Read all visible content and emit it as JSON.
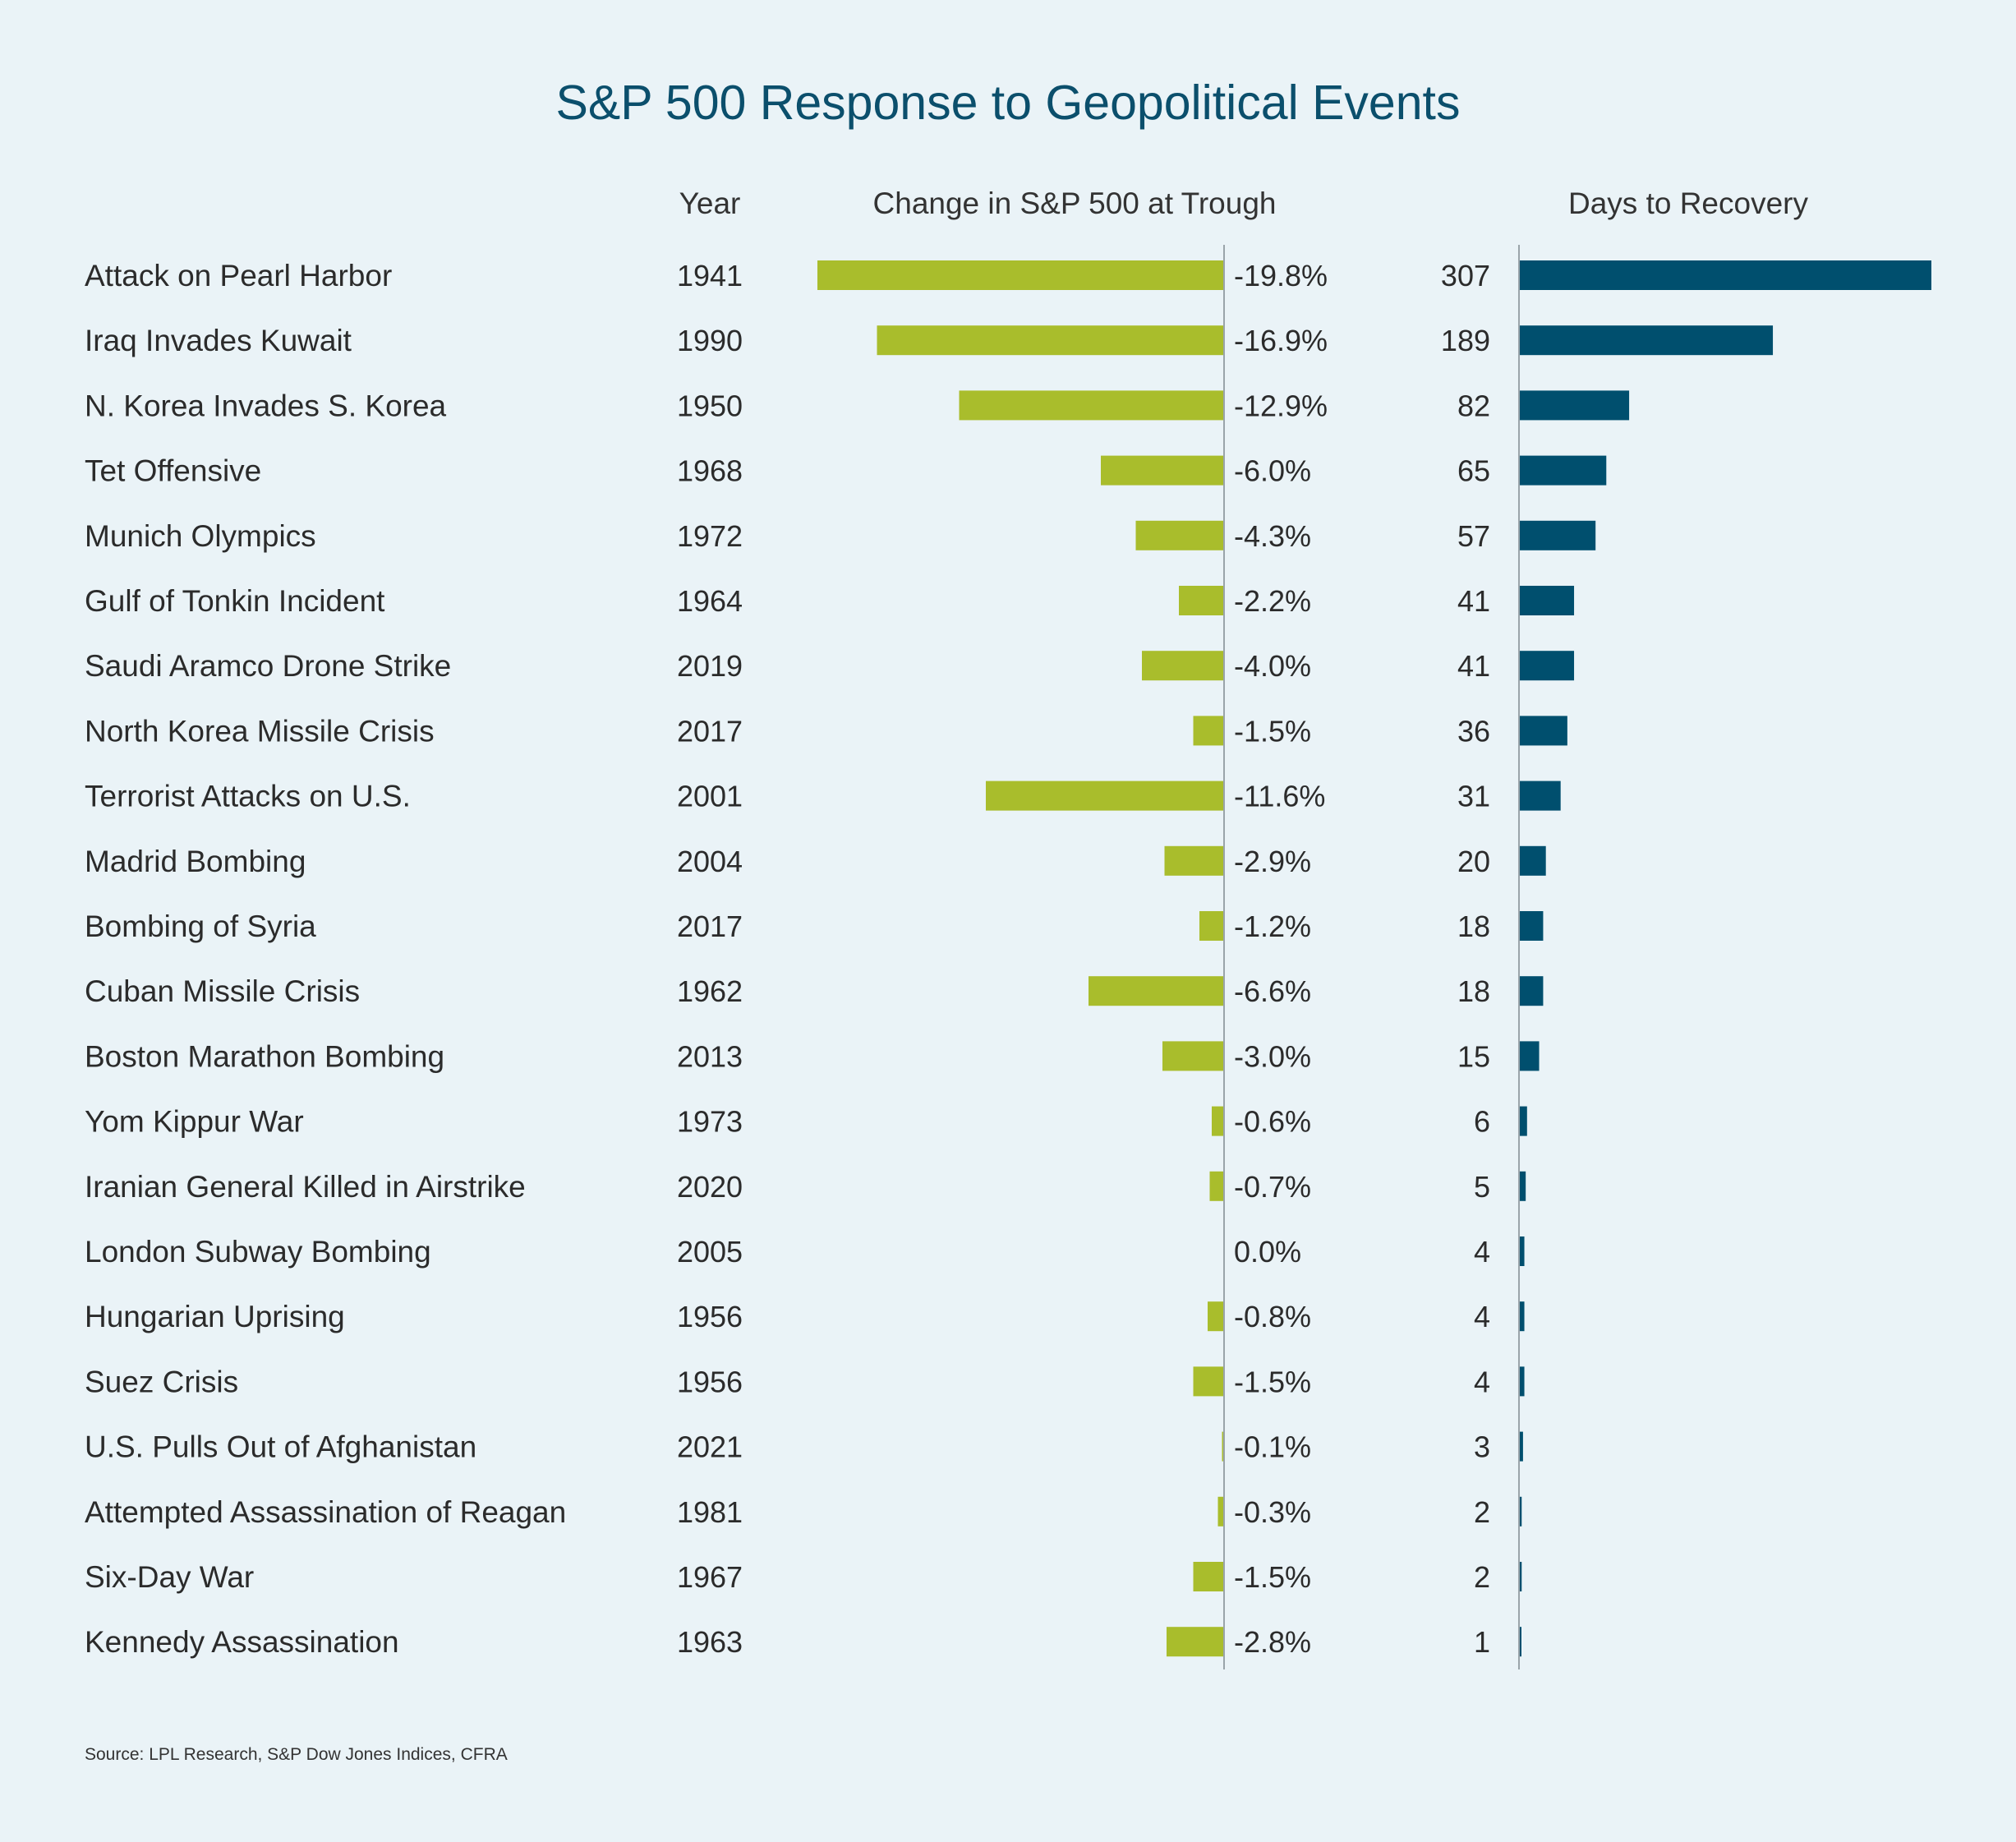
{
  "colors": {
    "background": "#eaf3f7",
    "title": "#0b4f6c",
    "change_bar": "#a9bd2c",
    "days_bar": "#004f6e",
    "axis": "#9aa4aa",
    "text": "#2b2b2b"
  },
  "chart_data": {
    "type": "bar",
    "title": "S&P 500 Response to Geopolitical Events",
    "headers": {
      "year": "Year",
      "change": "Change in S&P 500 at Trough",
      "days": "Days to Recovery"
    },
    "categories": [
      "Attack on Pearl Harbor",
      "Iraq Invades Kuwait",
      "N. Korea Invades S. Korea",
      "Tet Offensive",
      "Munich Olympics",
      "Gulf of Tonkin Incident",
      "Saudi Aramco Drone Strike",
      "North Korea Missile Crisis",
      "Terrorist Attacks on U.S.",
      "Madrid Bombing",
      "Bombing of Syria",
      "Cuban Missile Crisis",
      "Boston Marathon Bombing",
      "Yom Kippur War",
      "Iranian General Killed in Airstrike",
      "London Subway Bombing",
      "Hungarian Uprising",
      "Suez Crisis",
      "U.S. Pulls Out of Afghanistan",
      "Attempted Assassination of Reagan",
      "Six-Day War",
      "Kennedy Assassination"
    ],
    "years": [
      "1941",
      "1990",
      "1950",
      "1968",
      "1972",
      "1964",
      "2019",
      "2017",
      "2001",
      "2004",
      "2017",
      "1962",
      "2013",
      "1973",
      "2020",
      "2005",
      "1956",
      "1956",
      "2021",
      "1981",
      "1967",
      "1963"
    ],
    "series": [
      {
        "values": [
          -19.8,
          -16.9,
          -12.9,
          -6.0,
          -4.3,
          -2.2,
          -4.0,
          -1.5,
          -11.6,
          -2.9,
          -1.2,
          -6.6,
          -3.0,
          -0.6,
          -0.7,
          0.0,
          -0.8,
          -1.5,
          -0.1,
          -0.3,
          -1.5,
          -2.8
        ],
        "labels": [
          "-19.8%",
          "-16.9%",
          "-12.9%",
          "-6.0%",
          "-4.3%",
          "-2.2%",
          "-4.0%",
          "-1.5%",
          "-11.6%",
          "-2.9%",
          "-1.2%",
          "-6.6%",
          "-3.0%",
          "-0.6%",
          "-0.7%",
          "0.0%",
          "-0.8%",
          "-1.5%",
          "-0.1%",
          "-0.3%",
          "-1.5%",
          "-2.8%"
        ]
      },
      {
        "values": [
          307,
          189,
          82,
          65,
          57,
          41,
          41,
          36,
          31,
          20,
          18,
          18,
          15,
          6,
          5,
          4,
          4,
          4,
          3,
          2,
          2,
          1
        ],
        "labels": [
          "307",
          "189",
          "82",
          "65",
          "57",
          "41",
          "41",
          "36",
          "31",
          "20",
          "18",
          "18",
          "15",
          "6",
          "5",
          "4",
          "4",
          "4",
          "3",
          "2",
          "2",
          "1"
        ]
      }
    ],
    "change_range": [
      -19.8,
      0
    ],
    "days_range": [
      0,
      307
    ],
    "grid": false,
    "legend": "none",
    "source": "Source: LPL Research, S&P Dow Jones Indices, CFRA"
  }
}
